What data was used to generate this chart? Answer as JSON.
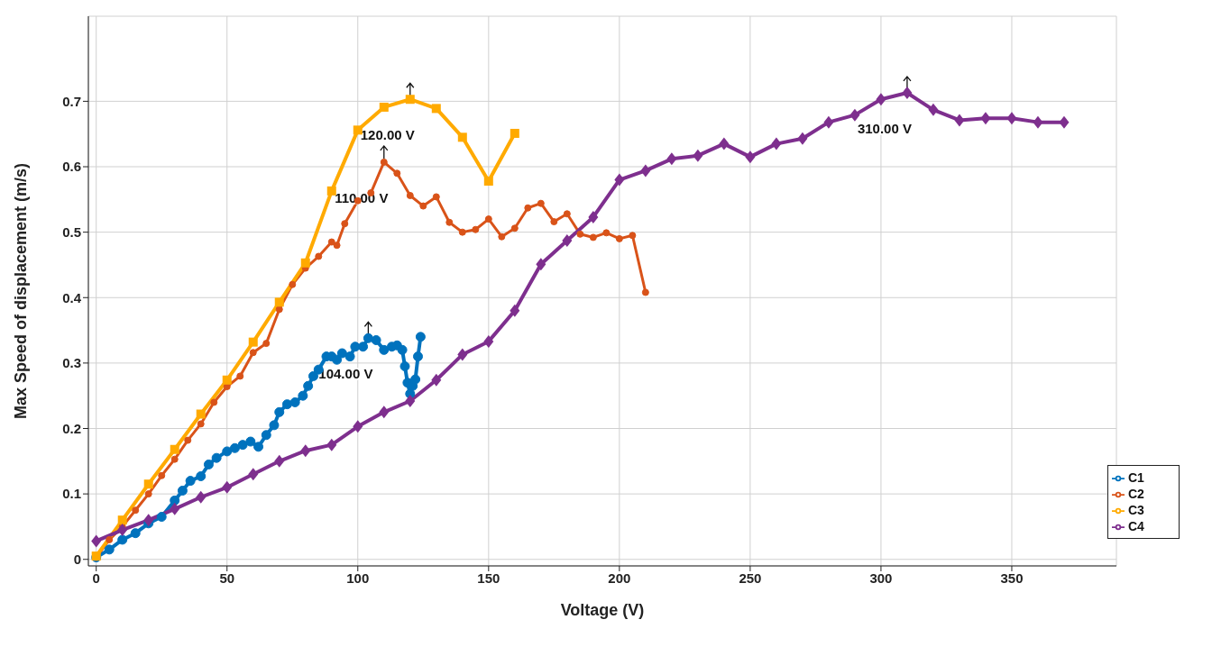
{
  "chart_data": {
    "type": "line",
    "xlabel": "Voltage (V)",
    "ylabel": "Max Speed of displacement (m/s)",
    "xlim": [
      -3,
      390
    ],
    "ylim": [
      -0.01,
      0.83
    ],
    "xticks": [
      0,
      50,
      100,
      150,
      200,
      250,
      300,
      350
    ],
    "yticks": [
      0,
      0.1,
      0.2,
      0.3,
      0.4,
      0.5,
      0.6,
      0.7
    ],
    "grid": true,
    "legend": "bottom right",
    "line_style": "solid",
    "annotations": [
      {
        "text": "104.00 V",
        "x": 104,
        "y": 0.338
      },
      {
        "text": "110.00 V",
        "x": 110,
        "y": 0.607
      },
      {
        "text": "120.00 V",
        "x": 120,
        "y": 0.703
      },
      {
        "text": "310.00 V",
        "x": 310,
        "y": 0.713
      }
    ],
    "series": [
      {
        "name": "C1",
        "color": "#0072bd",
        "marker": "circle",
        "x": [
          0,
          5,
          10,
          15,
          20,
          25,
          30,
          33,
          36,
          40,
          43,
          46,
          50,
          53,
          56,
          59,
          62,
          65,
          68,
          70,
          73,
          76,
          79,
          81,
          83,
          85,
          88,
          90,
          92,
          94,
          97,
          99,
          102,
          104,
          107,
          110,
          113,
          115,
          117,
          118,
          119,
          120,
          121,
          122,
          123,
          124
        ],
        "values": [
          0.003,
          0.015,
          0.03,
          0.04,
          0.055,
          0.065,
          0.09,
          0.105,
          0.12,
          0.127,
          0.145,
          0.155,
          0.165,
          0.17,
          0.175,
          0.18,
          0.172,
          0.19,
          0.205,
          0.225,
          0.237,
          0.24,
          0.25,
          0.265,
          0.28,
          0.29,
          0.31,
          0.31,
          0.305,
          0.315,
          0.31,
          0.325,
          0.325,
          0.338,
          0.335,
          0.32,
          0.325,
          0.327,
          0.32,
          0.295,
          0.27,
          0.253,
          0.265,
          0.275,
          0.31,
          0.34
        ]
      },
      {
        "name": "C2",
        "color": "#d95319",
        "marker": "circle",
        "x": [
          0,
          5,
          10,
          15,
          20,
          25,
          30,
          35,
          40,
          45,
          50,
          55,
          60,
          65,
          70,
          75,
          80,
          85,
          90,
          92,
          95,
          100,
          105,
          110,
          115,
          120,
          125,
          130,
          135,
          140,
          145,
          150,
          155,
          160,
          165,
          170,
          175,
          180,
          185,
          190,
          195,
          200,
          205,
          210
        ],
        "values": [
          0.003,
          0.03,
          0.05,
          0.075,
          0.1,
          0.128,
          0.153,
          0.182,
          0.207,
          0.24,
          0.264,
          0.28,
          0.316,
          0.33,
          0.382,
          0.42,
          0.445,
          0.463,
          0.485,
          0.48,
          0.513,
          0.548,
          0.56,
          0.607,
          0.59,
          0.556,
          0.54,
          0.554,
          0.515,
          0.5,
          0.504,
          0.52,
          0.493,
          0.506,
          0.537,
          0.544,
          0.516,
          0.528,
          0.497,
          0.492,
          0.499,
          0.49,
          0.495,
          0.408
        ]
      },
      {
        "name": "C3",
        "color": "#ffaa00",
        "marker": "square",
        "x": [
          0,
          10,
          20,
          30,
          40,
          50,
          60,
          70,
          80,
          90,
          100,
          110,
          120,
          130,
          140,
          150,
          160
        ],
        "values": [
          0.005,
          0.06,
          0.115,
          0.168,
          0.222,
          0.274,
          0.332,
          0.393,
          0.453,
          0.563,
          0.656,
          0.691,
          0.703,
          0.689,
          0.645,
          0.578,
          0.651
        ]
      },
      {
        "name": "C4",
        "color": "#7e2f8e",
        "marker": "diamond",
        "x": [
          0,
          10,
          20,
          30,
          40,
          50,
          60,
          70,
          80,
          90,
          100,
          110,
          120,
          130,
          140,
          150,
          160,
          170,
          180,
          190,
          200,
          210,
          220,
          230,
          240,
          250,
          260,
          270,
          280,
          290,
          300,
          310,
          320,
          330,
          340,
          350,
          360,
          370
        ],
        "values": [
          0.028,
          0.045,
          0.06,
          0.077,
          0.095,
          0.11,
          0.13,
          0.15,
          0.166,
          0.175,
          0.203,
          0.225,
          0.242,
          0.274,
          0.313,
          0.333,
          0.38,
          0.451,
          0.487,
          0.523,
          0.58,
          0.594,
          0.612,
          0.617,
          0.635,
          0.615,
          0.635,
          0.643,
          0.668,
          0.679,
          0.703,
          0.713,
          0.687,
          0.671,
          0.674,
          0.674,
          0.668,
          0.668
        ]
      }
    ]
  }
}
